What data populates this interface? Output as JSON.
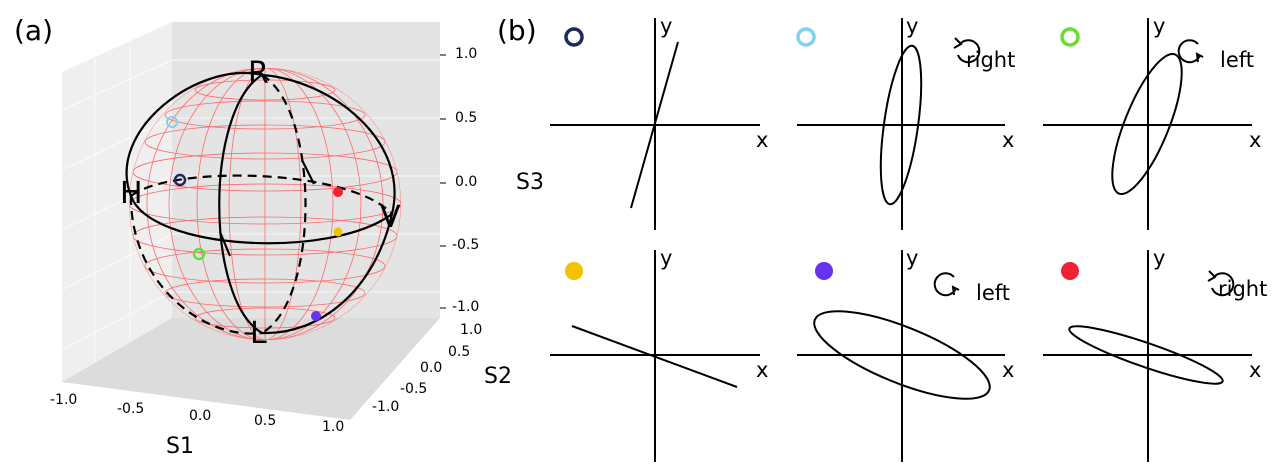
{
  "panel_a": {
    "label": "(a)",
    "points": {
      "R": "R",
      "H": "H",
      "V": "V",
      "L": "L"
    },
    "axes": {
      "s1": {
        "title": "S1",
        "ticks": [
          "-1.0",
          "-0.5",
          "0.0",
          "0.5",
          "1.0"
        ]
      },
      "s2": {
        "title": "S2",
        "ticks": [
          "1.0",
          "0.5",
          "0.0",
          "-0.5",
          "-1.0"
        ]
      },
      "s3": {
        "title": "S3",
        "ticks": [
          "1.0",
          "0.5",
          "0.0",
          "-0.5",
          "-1.0"
        ]
      }
    },
    "markers": [
      {
        "id": "navy",
        "color": "#1b2a5a",
        "style": "ring"
      },
      {
        "id": "cyan",
        "color": "#7fd3ea",
        "style": "ring"
      },
      {
        "id": "green",
        "color": "#66dd33",
        "style": "ring"
      },
      {
        "id": "yellow",
        "color": "#f2c200",
        "style": "dot"
      },
      {
        "id": "purple",
        "color": "#6633ee",
        "style": "dot"
      },
      {
        "id": "red",
        "color": "#ee2233",
        "style": "dot"
      }
    ],
    "colors": {
      "wireframe": "#ff6a6a",
      "wall": "#e9e9e9",
      "floor": "#dcdcdc"
    }
  },
  "panel_b": {
    "label": "(b)",
    "axis_x": "x",
    "axis_y": "y",
    "plots": [
      {
        "marker": "navy",
        "shape": "line",
        "rotation": ""
      },
      {
        "marker": "cyan",
        "shape": "ellipse",
        "rotation": "right"
      },
      {
        "marker": "green",
        "shape": "ellipse",
        "rotation": "left"
      },
      {
        "marker": "yellow",
        "shape": "line",
        "rotation": ""
      },
      {
        "marker": "purple",
        "shape": "ellipse",
        "rotation": "left"
      },
      {
        "marker": "red",
        "shape": "ellipse",
        "rotation": "right"
      }
    ]
  }
}
